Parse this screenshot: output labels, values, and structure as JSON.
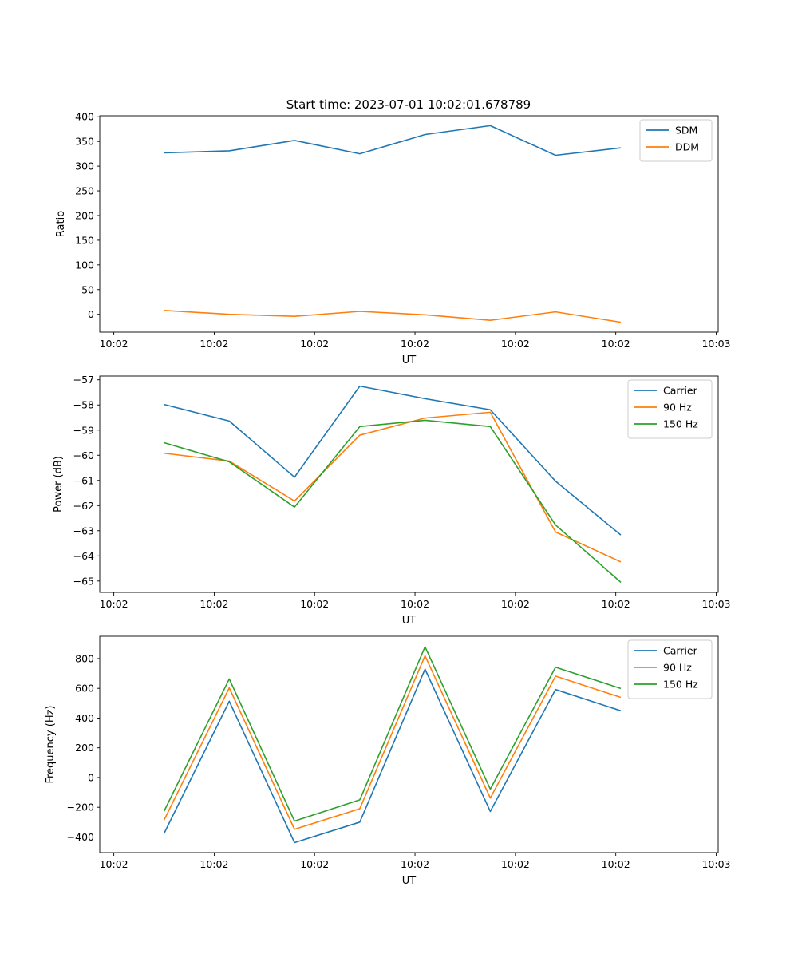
{
  "title": "Start time: 2023-07-01 10:02:01.678789",
  "chart_data": [
    {
      "type": "line",
      "ylabel": "Ratio",
      "xlabel": "UT",
      "ylim": [
        -36,
        402
      ],
      "yticks": [
        0,
        50,
        100,
        150,
        200,
        250,
        300,
        350,
        400
      ],
      "xticks": [
        0,
        1,
        2,
        3,
        4,
        5,
        6
      ],
      "xtick_labels": [
        "10:02",
        "10:02",
        "10:02",
        "10:02",
        "10:02",
        "10:02",
        "10:03"
      ],
      "xlim": [
        -0.14,
        6.02
      ],
      "x": [
        0.5,
        1.15,
        1.8,
        2.45,
        3.1,
        3.75,
        4.4,
        5.05
      ],
      "series": [
        {
          "name": "SDM",
          "color": "#1f77b4",
          "values": [
            327,
            331,
            352,
            325,
            364,
            382,
            322,
            337
          ]
        },
        {
          "name": "DDM",
          "color": "#ff7f0e",
          "values": [
            8,
            0,
            -4,
            6,
            -1,
            -12,
            5,
            -16
          ]
        }
      ]
    },
    {
      "type": "line",
      "ylabel": "Power (dB)",
      "xlabel": "UT",
      "ylim": [
        -65.45,
        -56.85
      ],
      "yticks": [
        -65,
        -64,
        -63,
        -62,
        -61,
        -60,
        -59,
        -58,
        -57
      ],
      "xticks": [
        0,
        1,
        2,
        3,
        4,
        5,
        6
      ],
      "xtick_labels": [
        "10:02",
        "10:02",
        "10:02",
        "10:02",
        "10:02",
        "10:02",
        "10:03"
      ],
      "xlim": [
        -0.14,
        6.02
      ],
      "x": [
        0.5,
        1.15,
        1.8,
        2.45,
        3.1,
        3.75,
        4.4,
        5.05
      ],
      "series": [
        {
          "name": "Carrier",
          "color": "#1f77b4",
          "values": [
            -57.98,
            -58.64,
            -60.87,
            -57.25,
            -57.75,
            -58.19,
            -61.03,
            -63.17
          ]
        },
        {
          "name": "90 Hz",
          "color": "#ff7f0e",
          "values": [
            -59.92,
            -60.23,
            -61.82,
            -59.2,
            -58.52,
            -58.29,
            -63.05,
            -64.24
          ]
        },
        {
          "name": "150 Hz",
          "color": "#2ca02c",
          "values": [
            -59.5,
            -60.26,
            -62.06,
            -58.86,
            -58.61,
            -58.86,
            -62.77,
            -65.05
          ]
        }
      ]
    },
    {
      "type": "line",
      "ylabel": "Frequency (Hz)",
      "xlabel": "UT",
      "ylim": [
        -505,
        950
      ],
      "yticks": [
        -400,
        -200,
        0,
        200,
        400,
        600,
        800
      ],
      "xticks": [
        0,
        1,
        2,
        3,
        4,
        5,
        6
      ],
      "xtick_labels": [
        "10:02",
        "10:02",
        "10:02",
        "10:02",
        "10:02",
        "10:02",
        "10:03"
      ],
      "xlim": [
        -0.14,
        6.02
      ],
      "x": [
        0.5,
        1.15,
        1.8,
        2.45,
        3.1,
        3.75,
        4.4,
        5.05
      ],
      "series": [
        {
          "name": "Carrier",
          "color": "#1f77b4",
          "values": [
            -377,
            513,
            -438,
            -300,
            729,
            -228,
            592,
            449
          ]
        },
        {
          "name": "90 Hz",
          "color": "#ff7f0e",
          "values": [
            -287,
            603,
            -348,
            -210,
            819,
            -138,
            682,
            539
          ]
        },
        {
          "name": "150 Hz",
          "color": "#2ca02c",
          "values": [
            -227,
            663,
            -293,
            -150,
            879,
            -78,
            742,
            599
          ]
        }
      ]
    }
  ]
}
